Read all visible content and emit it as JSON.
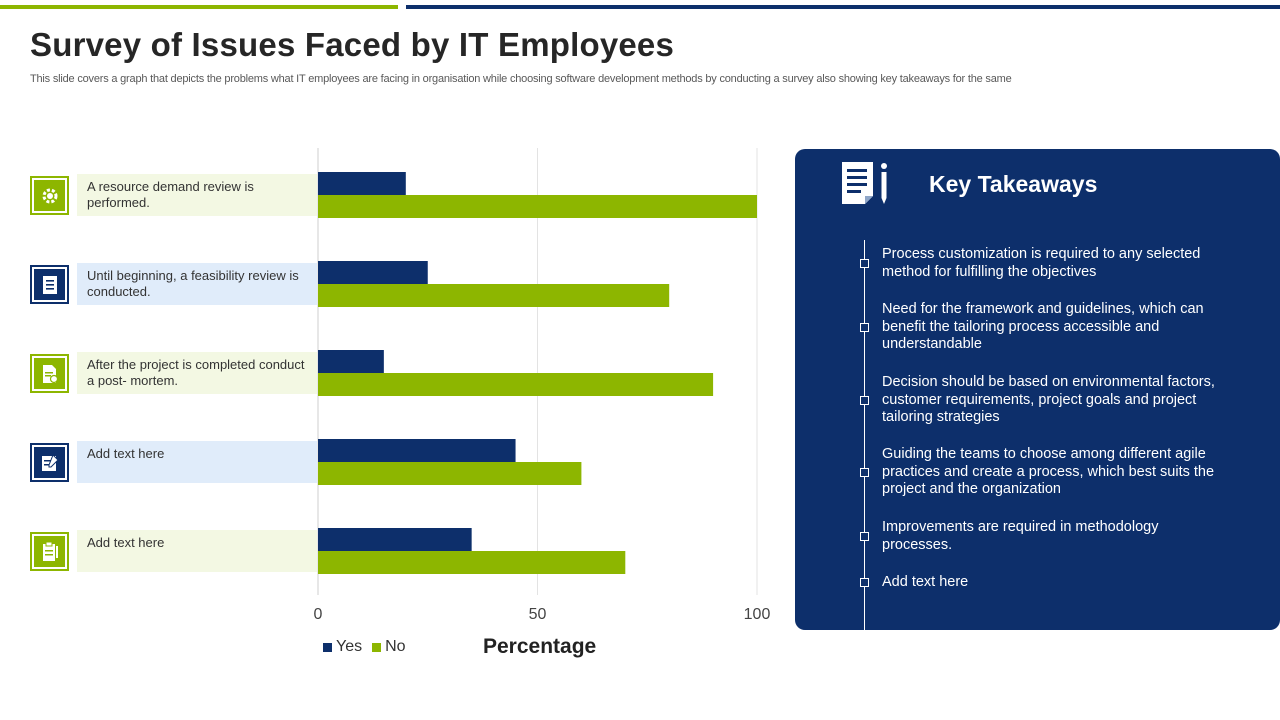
{
  "header": {
    "title": "Survey of Issues Faced by IT Employees",
    "subtitle": "This slide covers a graph that depicts the problems what IT employees are facing in organisation while choosing software development methods by conducting a survey  also showing key takeaways for the same"
  },
  "rows": [
    {
      "label": "A resource  demand review  is performed.",
      "icon": "gear-people-icon"
    },
    {
      "label": "Until beginning,  a feasibility review is conducted.",
      "icon": "clipboard-list-icon"
    },
    {
      "label": "After the project is completed conduct a post- mortem.",
      "icon": "document-check-icon"
    },
    {
      "label": "Add text here",
      "icon": "checklist-pen-icon"
    },
    {
      "label": "Add text here",
      "icon": "clipboard-icon"
    }
  ],
  "chart_data": {
    "type": "bar",
    "orientation": "horizontal",
    "categories": [
      "A resource  demand review  is performed.",
      "Until beginning,  a feasibility review is conducted.",
      "After the project is completed conduct a post- mortem.",
      "Add text here",
      "Add text here"
    ],
    "series": [
      {
        "name": "Yes",
        "values": [
          20,
          25,
          15,
          45,
          35
        ],
        "color": "#0d2f6b"
      },
      {
        "name": "No",
        "values": [
          100,
          80,
          90,
          60,
          70
        ],
        "color": "#8db600"
      }
    ],
    "xlim": [
      0,
      100
    ],
    "xticks": [
      0,
      50,
      100
    ],
    "xlabel": "Percentage",
    "grid": true,
    "legend": "bottom-left"
  },
  "legend": {
    "yes": "Yes",
    "no": "No"
  },
  "takeaways": {
    "title": "Key Takeaways",
    "items": [
      "Process customization is required to any selected method for fulfilling the objectives",
      "Need for the framework and guidelines,  which can benefit the tailoring process accessible and understandable",
      "Decision should be based on environmental factors, customer requirements, project goals and project tailoring strategies",
      "Guiding the teams to choose among different agile practices and create a process, which best suits the project and the organization",
      "Improvements are required in methodology processes.",
      "Add text here"
    ]
  },
  "colors": {
    "navy": "#0d2f6b",
    "green": "#8db600"
  }
}
